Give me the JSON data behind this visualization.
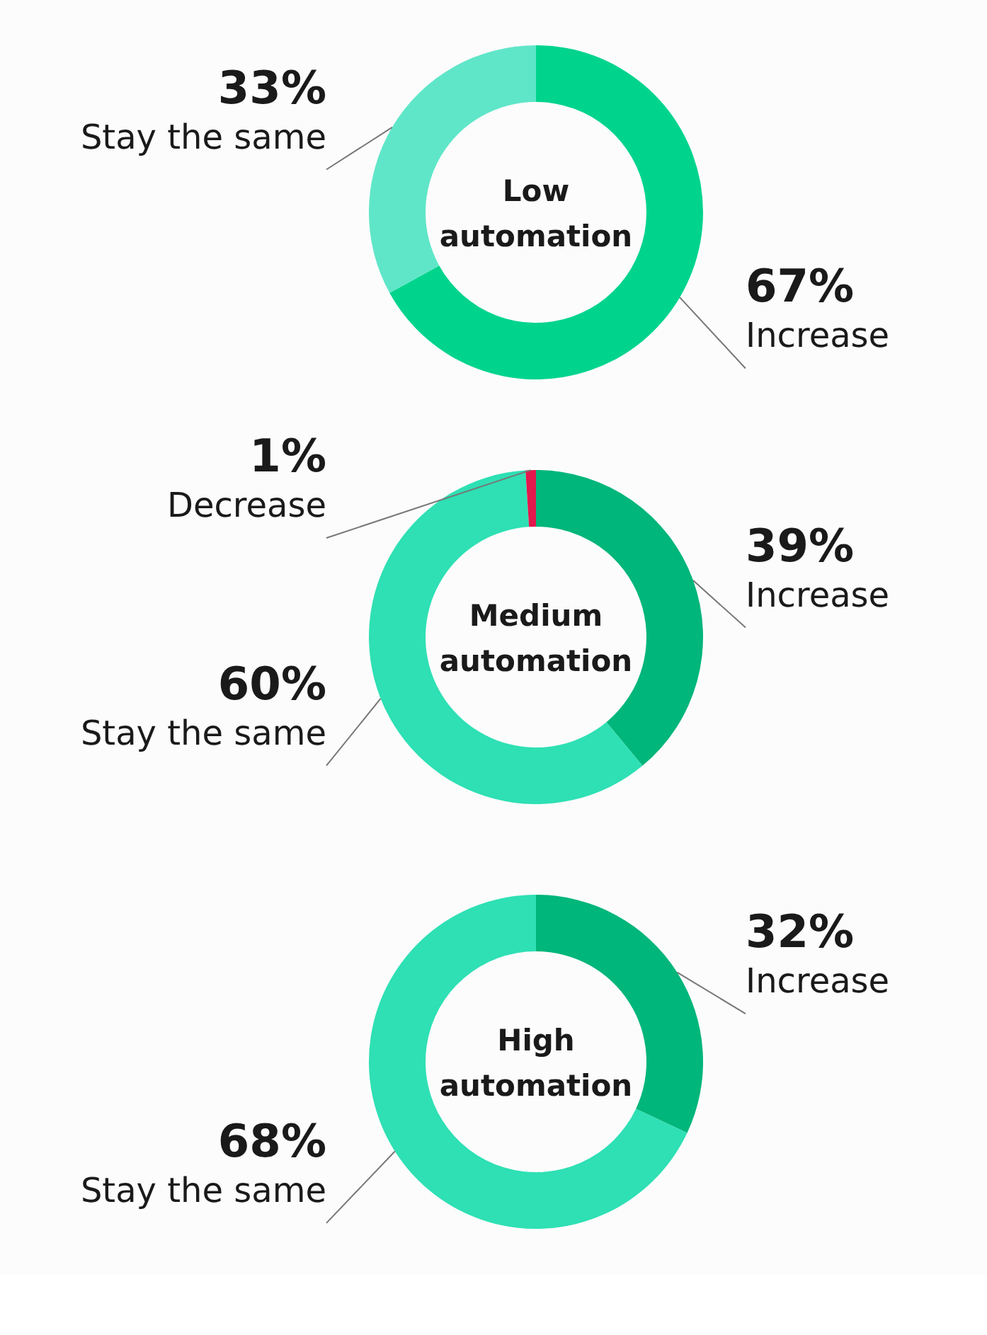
{
  "chart_data": [
    {
      "type": "donut",
      "title": "Low automation",
      "categories": [
        "Increase",
        "Stay the same"
      ],
      "values": [
        67,
        33
      ],
      "value_labels": [
        "67%",
        "33%"
      ],
      "colors": [
        "#00d48c",
        "#5fe6c8"
      ]
    },
    {
      "type": "donut",
      "title": "Medium automation",
      "categories": [
        "Increase",
        "Stay the same",
        "Decrease"
      ],
      "values": [
        39,
        60,
        1
      ],
      "value_labels": [
        "39%",
        "60%",
        "1%"
      ],
      "colors": [
        "#00b67a",
        "#2ee0b4",
        "#e3184d"
      ]
    },
    {
      "type": "donut",
      "title": "High automation",
      "categories": [
        "Increase",
        "Stay the same"
      ],
      "values": [
        32,
        68
      ],
      "value_labels": [
        "32%",
        "68%"
      ],
      "colors": [
        "#00b67a",
        "#2ee0b4"
      ]
    }
  ]
}
